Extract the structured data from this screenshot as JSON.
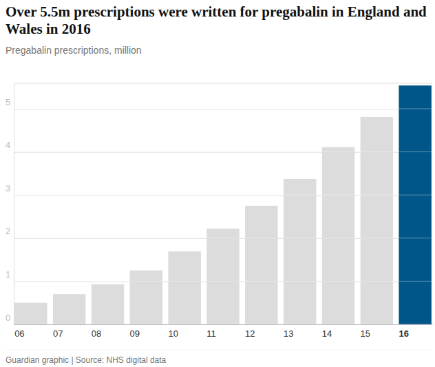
{
  "chart_data": {
    "type": "bar",
    "title": "Over 5.5m prescriptions were written for pregabalin in England and Wales in 2016",
    "subtitle": "Pregabalin prescriptions, million",
    "source": "Guardian graphic | Source: NHS digital data",
    "categories": [
      "06",
      "07",
      "08",
      "09",
      "10",
      "11",
      "12",
      "13",
      "14",
      "15",
      "16"
    ],
    "values": [
      0.5,
      0.7,
      0.93,
      1.25,
      1.69,
      2.22,
      2.75,
      3.37,
      4.11,
      4.81,
      5.54
    ],
    "colors": [
      "#dcdcdc",
      "#dcdcdc",
      "#dcdcdc",
      "#dcdcdc",
      "#dcdcdc",
      "#dcdcdc",
      "#dcdcdc",
      "#dcdcdc",
      "#dcdcdc",
      "#dcdcdc",
      "#005689"
    ],
    "ylim": [
      0,
      5.6
    ],
    "yticks": [
      0,
      1,
      2,
      3,
      4,
      5
    ],
    "grid": true
  }
}
